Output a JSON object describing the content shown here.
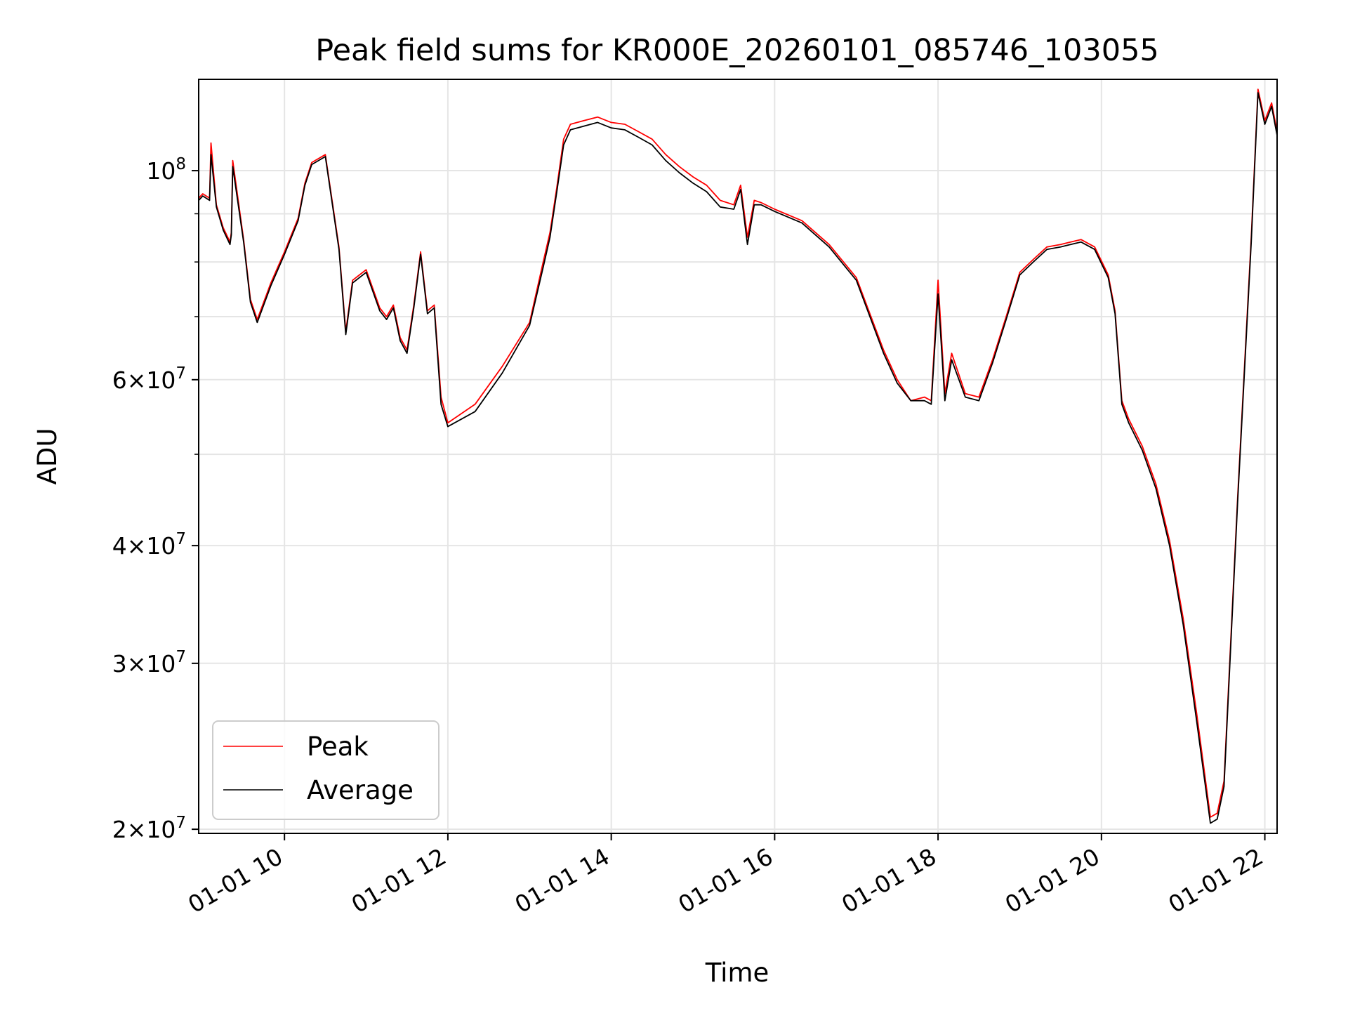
{
  "chart_data": {
    "type": "line",
    "title": "Peak field sums for KR000E_20260101_085746_103055",
    "xlabel": "Time",
    "ylabel": "ADU",
    "x_tick_labels": [
      "01-01 10",
      "01-01 12",
      "01-01 14",
      "01-01 16",
      "01-01 18",
      "01-01 20",
      "01-01 22"
    ],
    "y_scale": "log",
    "ylim": [
      19800000,
      125000000
    ],
    "xlim": [
      "2026-01-01 08:57",
      "2026-01-01 22:09"
    ],
    "y_ticks": [
      {
        "value": 100000000,
        "mant": "",
        "exp": "8"
      },
      {
        "value": 60000000,
        "mant": "6",
        "exp": "7"
      },
      {
        "value": 40000000,
        "mant": "4",
        "exp": "7"
      },
      {
        "value": 30000000,
        "mant": "3",
        "exp": "7"
      },
      {
        "value": 20000000,
        "mant": "2",
        "exp": "7"
      }
    ],
    "y_ticks_minor": [
      50000000,
      70000000,
      80000000,
      90000000
    ],
    "grid": true,
    "legend_position": "lower-left",
    "x": [
      "2026-01-01 08:57",
      "2026-01-01 09:00",
      "2026-01-01 09:05",
      "2026-01-01 09:06",
      "2026-01-01 09:10",
      "2026-01-01 09:15",
      "2026-01-01 09:20",
      "2026-01-01 09:21",
      "2026-01-01 09:22",
      "2026-01-01 09:30",
      "2026-01-01 09:35",
      "2026-01-01 09:40",
      "2026-01-01 09:50",
      "2026-01-01 10:00",
      "2026-01-01 10:10",
      "2026-01-01 10:15",
      "2026-01-01 10:20",
      "2026-01-01 10:30",
      "2026-01-01 10:40",
      "2026-01-01 10:45",
      "2026-01-01 10:50",
      "2026-01-01 11:00",
      "2026-01-01 11:10",
      "2026-01-01 11:15",
      "2026-01-01 11:20",
      "2026-01-01 11:25",
      "2026-01-01 11:30",
      "2026-01-01 11:35",
      "2026-01-01 11:40",
      "2026-01-01 11:45",
      "2026-01-01 11:50",
      "2026-01-01 11:55",
      "2026-01-01 12:00",
      "2026-01-01 12:20",
      "2026-01-01 12:40",
      "2026-01-01 13:00",
      "2026-01-01 13:10",
      "2026-01-01 13:15",
      "2026-01-01 13:20",
      "2026-01-01 13:25",
      "2026-01-01 13:30",
      "2026-01-01 13:40",
      "2026-01-01 13:50",
      "2026-01-01 14:00",
      "2026-01-01 14:10",
      "2026-01-01 14:20",
      "2026-01-01 14:30",
      "2026-01-01 14:40",
      "2026-01-01 14:50",
      "2026-01-01 15:00",
      "2026-01-01 15:10",
      "2026-01-01 15:20",
      "2026-01-01 15:30",
      "2026-01-01 15:35",
      "2026-01-01 15:40",
      "2026-01-01 15:45",
      "2026-01-01 15:50",
      "2026-01-01 16:00",
      "2026-01-01 16:20",
      "2026-01-01 16:40",
      "2026-01-01 17:00",
      "2026-01-01 17:20",
      "2026-01-01 17:30",
      "2026-01-01 17:40",
      "2026-01-01 17:50",
      "2026-01-01 17:55",
      "2026-01-01 18:00",
      "2026-01-01 18:05",
      "2026-01-01 18:10",
      "2026-01-01 18:20",
      "2026-01-01 18:30",
      "2026-01-01 18:40",
      "2026-01-01 18:50",
      "2026-01-01 19:00",
      "2026-01-01 19:10",
      "2026-01-01 19:20",
      "2026-01-01 19:30",
      "2026-01-01 19:45",
      "2026-01-01 19:55",
      "2026-01-01 20:05",
      "2026-01-01 20:10",
      "2026-01-01 20:15",
      "2026-01-01 20:20",
      "2026-01-01 20:30",
      "2026-01-01 20:40",
      "2026-01-01 20:50",
      "2026-01-01 21:00",
      "2026-01-01 21:10",
      "2026-01-01 21:20",
      "2026-01-01 21:25",
      "2026-01-01 21:30",
      "2026-01-01 21:40",
      "2026-01-01 21:50",
      "2026-01-01 21:55",
      "2026-01-01 22:00",
      "2026-01-01 22:05",
      "2026-01-01 22:09"
    ],
    "series": [
      {
        "name": "Peak",
        "color": "#ff0000",
        "values": [
          93500000,
          94500000,
          93500000,
          107000000,
          92000000,
          87000000,
          84000000,
          86000000,
          102500000,
          84500000,
          73000000,
          69500000,
          76000000,
          82000000,
          89000000,
          97000000,
          102000000,
          104000000,
          83000000,
          67500000,
          76500000,
          78500000,
          71500000,
          70000000,
          72000000,
          66500000,
          64500000,
          72000000,
          82000000,
          71000000,
          72000000,
          57500000,
          54000000,
          56500000,
          62000000,
          69000000,
          80000000,
          86000000,
          96000000,
          108000000,
          112000000,
          113000000,
          114000000,
          112500000,
          112000000,
          110000000,
          108000000,
          104000000,
          101000000,
          98500000,
          96500000,
          93000000,
          92000000,
          96500000,
          85000000,
          93000000,
          92500000,
          91000000,
          88500000,
          83500000,
          77000000,
          64500000,
          60000000,
          57000000,
          57500000,
          57000000,
          76500000,
          58000000,
          64000000,
          58000000,
          57500000,
          63000000,
          70000000,
          78000000,
          80500000,
          83000000,
          83500000,
          84500000,
          83000000,
          77500000,
          71000000,
          57000000,
          54500000,
          51000000,
          46500000,
          40500000,
          33500000,
          26500000,
          20600000,
          20800000,
          22500000,
          45000000,
          85000000,
          122000000,
          113000000,
          118000000,
          110000000
        ]
      },
      {
        "name": "Average",
        "color": "#000000",
        "values": [
          93000000,
          94000000,
          93000000,
          104000000,
          91500000,
          86500000,
          83500000,
          85500000,
          101000000,
          84000000,
          72500000,
          69000000,
          75500000,
          81500000,
          88500000,
          96500000,
          101500000,
          103500000,
          82500000,
          67000000,
          76000000,
          78000000,
          71000000,
          69500000,
          71500000,
          66000000,
          64000000,
          71500000,
          81500000,
          70500000,
          71500000,
          56500000,
          53500000,
          55500000,
          61000000,
          68500000,
          79000000,
          85000000,
          95000000,
          106500000,
          110500000,
          111500000,
          112500000,
          111000000,
          110500000,
          108500000,
          106500000,
          102500000,
          99500000,
          97000000,
          95000000,
          91500000,
          91000000,
          95500000,
          83500000,
          92000000,
          92000000,
          90500000,
          88000000,
          83000000,
          76500000,
          64000000,
          59500000,
          57000000,
          57000000,
          56500000,
          74000000,
          57000000,
          63000000,
          57500000,
          57000000,
          62500000,
          69500000,
          77500000,
          80000000,
          82500000,
          83000000,
          84000000,
          82500000,
          77000000,
          70500000,
          56500000,
          54000000,
          50500000,
          46000000,
          40000000,
          33000000,
          26000000,
          20300000,
          20500000,
          22200000,
          44500000,
          84000000,
          121000000,
          112000000,
          117000000,
          109000000
        ]
      }
    ]
  }
}
